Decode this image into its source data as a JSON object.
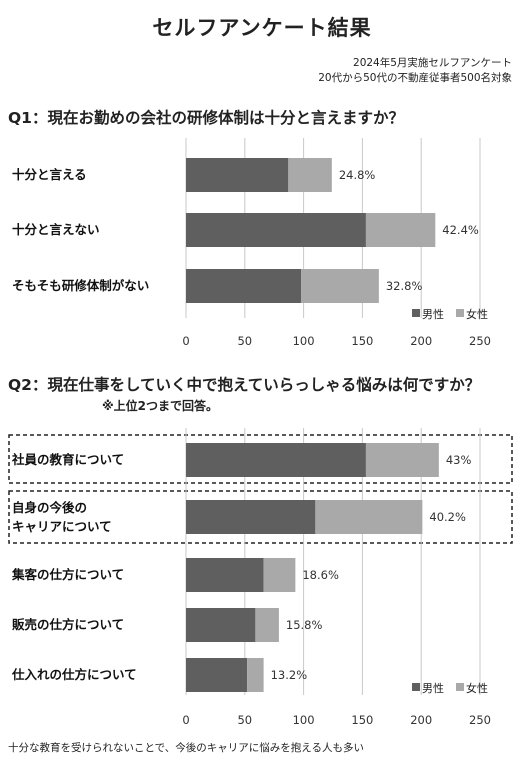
{
  "title": "セルフアンケート結果",
  "meta": {
    "line1": "2024年5月実施セルフアンケート",
    "line2": "20代から50代の不動産従事者500名対象"
  },
  "colors": {
    "male": "#5f5f5f",
    "female": "#a9a9a9",
    "grid": "#c8c8c8",
    "highlight_border": "#222222"
  },
  "legend": {
    "male": "男性",
    "female": "女性"
  },
  "chart_data": [
    {
      "type": "bar",
      "title": "Q1：現在お勤めの会社の研修体制は十分と言えますか？",
      "categories": [
        "十分と言える",
        "十分と言えない",
        "そもそも研修体制がない"
      ],
      "series": [
        {
          "name": "男性",
          "values": [
            87,
            153,
            98
          ]
        },
        {
          "name": "女性",
          "values": [
            37,
            59,
            66
          ]
        }
      ],
      "data_labels": [
        "24.8%",
        "42.4%",
        "32.8%"
      ],
      "xlim": [
        0,
        250
      ],
      "ticks": [
        "0",
        "50",
        "100",
        "150",
        "200",
        "250"
      ],
      "grid": true,
      "legend_position": "bottom-right"
    },
    {
      "type": "bar",
      "title": "Q2：現在仕事をしていく中で抱えていらっしゃる悩みは何ですか？",
      "subtitle": "※上位2つまで回答。",
      "categories": [
        "社員の教育について",
        "自身の今後の\nキャリアについて",
        "集客の仕方について",
        "販売の仕方について",
        "仕入れの仕方について"
      ],
      "series": [
        {
          "name": "男性",
          "values": [
            153,
            110,
            66,
            59,
            52
          ]
        },
        {
          "name": "女性",
          "values": [
            62,
            91,
            27,
            20,
            14
          ]
        }
      ],
      "data_labels": [
        "43%",
        "40.2%",
        "18.6%",
        "15.8%",
        "13.2%"
      ],
      "highlighted": [
        0,
        1
      ],
      "xlim": [
        0,
        250
      ],
      "ticks": [
        "0",
        "50",
        "100",
        "150",
        "200",
        "250"
      ],
      "grid": true,
      "legend_position": "bottom-right"
    }
  ],
  "footer": "十分な教育を受けられないことで、今後のキャリアに悩みを抱える人も多い"
}
